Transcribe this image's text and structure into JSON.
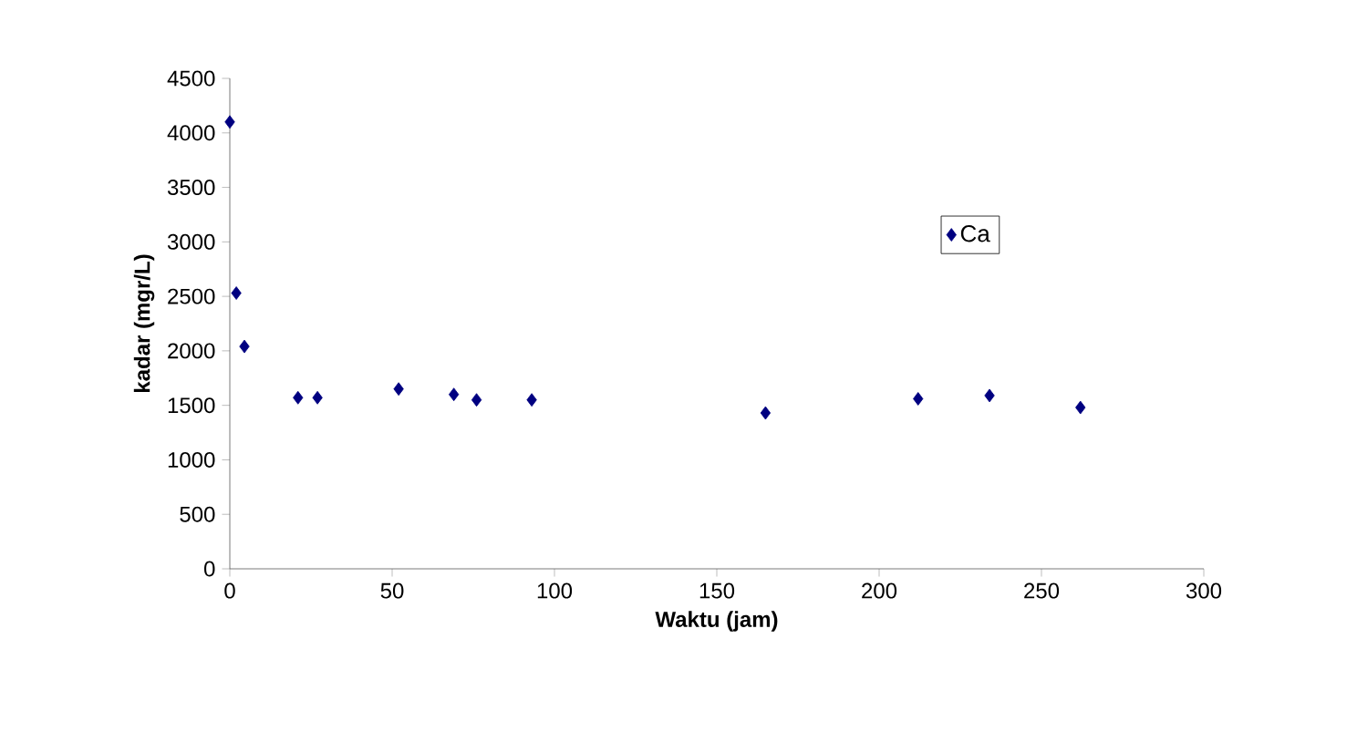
{
  "chart_data": {
    "type": "scatter",
    "xlabel": "Waktu (jam)",
    "ylabel": "kadar (mgr/L)",
    "x": [
      0,
      2,
      4.5,
      21,
      27,
      52,
      69,
      76,
      93,
      165,
      212,
      234,
      262
    ],
    "series": [
      {
        "name": "Ca",
        "color": "#000080",
        "values": [
          4100,
          2530,
          2040,
          1570,
          1570,
          1650,
          1600,
          1550,
          1550,
          1430,
          1560,
          1590,
          1480
        ]
      }
    ],
    "xlim": [
      0,
      300
    ],
    "xticks": [
      0,
      50,
      100,
      150,
      200,
      250,
      300
    ],
    "ylim": [
      0,
      4500
    ],
    "yticks": [
      0,
      500,
      1000,
      1500,
      2000,
      2500,
      3000,
      3500,
      4000,
      4500
    ],
    "grid": false,
    "legend": "top right",
    "marker": "diamond"
  }
}
